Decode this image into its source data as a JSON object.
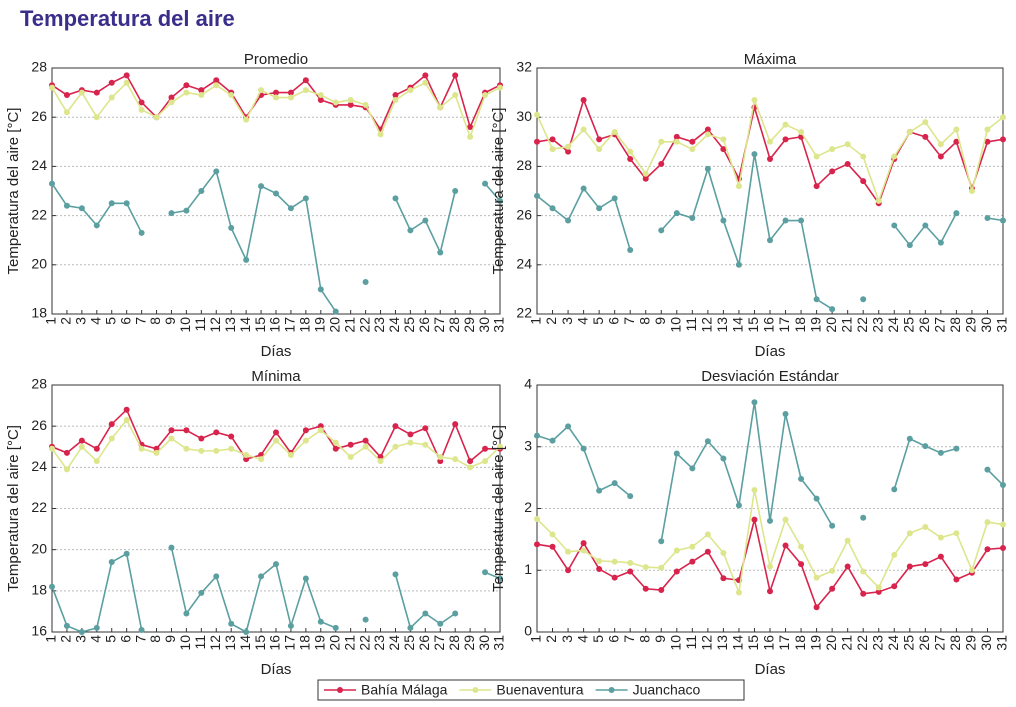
{
  "title": "Temperatura del aire",
  "chart_data": [
    {
      "type": "line",
      "title": "Promedio",
      "x_label": "Días",
      "y_label": "Temperatura del aire [°C]",
      "x": [
        1,
        2,
        3,
        4,
        5,
        6,
        7,
        8,
        9,
        10,
        11,
        12,
        13,
        14,
        15,
        16,
        17,
        18,
        19,
        20,
        21,
        22,
        23,
        24,
        25,
        26,
        27,
        28,
        29,
        30,
        31
      ],
      "xlim": [
        1,
        31
      ],
      "xticks": [
        1,
        2,
        3,
        4,
        5,
        6,
        7,
        8,
        9,
        10,
        11,
        12,
        13,
        14,
        15,
        16,
        17,
        18,
        19,
        20,
        21,
        22,
        23,
        24,
        25,
        26,
        27,
        28,
        29,
        30,
        31
      ],
      "ylim": [
        18,
        28
      ],
      "yticks": [
        18,
        20,
        22,
        24,
        26,
        28
      ],
      "grid": true,
      "series": [
        {
          "name": "Bahía Málaga",
          "color": "#d8234c",
          "values": [
            27.3,
            26.9,
            27.1,
            27.0,
            27.4,
            27.7,
            26.6,
            26.0,
            26.8,
            27.3,
            27.1,
            27.5,
            27.0,
            26.0,
            26.9,
            27.0,
            27.0,
            27.5,
            26.7,
            26.5,
            26.5,
            26.4,
            25.5,
            26.9,
            27.2,
            27.7,
            26.4,
            27.7,
            25.6,
            27.0,
            27.3
          ]
        },
        {
          "name": "Buenaventura",
          "color": "#dde68c",
          "values": [
            27.2,
            26.2,
            27.0,
            26.0,
            26.8,
            27.4,
            26.3,
            26.0,
            26.6,
            27.0,
            26.9,
            27.3,
            26.9,
            25.9,
            27.1,
            26.8,
            26.8,
            27.1,
            26.9,
            26.6,
            26.7,
            26.5,
            25.3,
            26.7,
            27.1,
            27.4,
            26.4,
            26.9,
            25.2,
            26.9,
            27.2
          ]
        },
        {
          "name": "Juanchaco",
          "color": "#5b9fa1",
          "values": [
            23.3,
            22.4,
            22.3,
            21.6,
            22.5,
            22.5,
            21.3,
            null,
            22.1,
            22.2,
            23.0,
            23.8,
            21.5,
            20.2,
            23.2,
            22.9,
            22.3,
            22.7,
            19.0,
            18.1,
            null,
            19.3,
            null,
            22.7,
            21.4,
            21.8,
            20.5,
            23.0,
            null,
            23.3,
            22.6
          ]
        }
      ]
    },
    {
      "type": "line",
      "title": "Máxima",
      "x_label": "Días",
      "y_label": "Temperatura del aire [°C]",
      "x": [
        1,
        2,
        3,
        4,
        5,
        6,
        7,
        8,
        9,
        10,
        11,
        12,
        13,
        14,
        15,
        16,
        17,
        18,
        19,
        20,
        21,
        22,
        23,
        24,
        25,
        26,
        27,
        28,
        29,
        30,
        31
      ],
      "xlim": [
        1,
        31
      ],
      "xticks": [
        1,
        2,
        3,
        4,
        5,
        6,
        7,
        8,
        9,
        10,
        11,
        12,
        13,
        14,
        15,
        16,
        17,
        18,
        19,
        20,
        21,
        22,
        23,
        24,
        25,
        26,
        27,
        28,
        29,
        30,
        31
      ],
      "ylim": [
        22,
        32
      ],
      "yticks": [
        22,
        24,
        26,
        28,
        30,
        32
      ],
      "grid": true,
      "series": [
        {
          "name": "Bahía Málaga",
          "color": "#d8234c",
          "values": [
            29.0,
            29.1,
            28.6,
            30.7,
            29.1,
            29.3,
            28.3,
            27.5,
            28.1,
            29.2,
            29.0,
            29.5,
            28.7,
            27.5,
            30.4,
            28.3,
            29.1,
            29.2,
            27.2,
            27.8,
            28.1,
            27.4,
            26.5,
            28.3,
            29.4,
            29.2,
            28.4,
            29.0,
            27.1,
            29.0,
            29.1
          ]
        },
        {
          "name": "Buenaventura",
          "color": "#dde68c",
          "values": [
            30.1,
            28.7,
            28.8,
            29.5,
            28.7,
            29.4,
            28.6,
            27.7,
            29.0,
            29.0,
            28.7,
            29.3,
            29.1,
            27.2,
            30.7,
            29.0,
            29.7,
            29.4,
            28.4,
            28.7,
            28.9,
            28.4,
            26.6,
            28.4,
            29.4,
            29.8,
            28.9,
            29.5,
            27.0,
            29.5,
            30.0
          ]
        },
        {
          "name": "Juanchaco",
          "color": "#5b9fa1",
          "values": [
            26.8,
            26.3,
            25.8,
            27.1,
            26.3,
            26.7,
            24.6,
            null,
            25.4,
            26.1,
            25.9,
            27.9,
            25.8,
            24.0,
            28.5,
            25.0,
            25.8,
            25.8,
            22.6,
            22.2,
            null,
            22.6,
            null,
            25.6,
            24.8,
            25.6,
            24.9,
            26.1,
            null,
            25.9,
            25.8
          ]
        }
      ]
    },
    {
      "type": "line",
      "title": "Mínima",
      "x_label": "Días",
      "y_label": "Temperatura del aire [°C]",
      "x": [
        1,
        2,
        3,
        4,
        5,
        6,
        7,
        8,
        9,
        10,
        11,
        12,
        13,
        14,
        15,
        16,
        17,
        18,
        19,
        20,
        21,
        22,
        23,
        24,
        25,
        26,
        27,
        28,
        29,
        30,
        31
      ],
      "xlim": [
        1,
        31
      ],
      "xticks": [
        1,
        2,
        3,
        4,
        5,
        6,
        7,
        8,
        9,
        10,
        11,
        12,
        13,
        14,
        15,
        16,
        17,
        18,
        19,
        20,
        21,
        22,
        23,
        24,
        25,
        26,
        27,
        28,
        29,
        30,
        31
      ],
      "ylim": [
        16,
        28
      ],
      "yticks": [
        16,
        18,
        20,
        22,
        24,
        26,
        28
      ],
      "grid": true,
      "series": [
        {
          "name": "Bahía Málaga",
          "color": "#d8234c",
          "values": [
            25.0,
            24.7,
            25.3,
            24.9,
            26.1,
            26.8,
            25.1,
            24.9,
            25.8,
            25.8,
            25.4,
            25.7,
            25.5,
            24.4,
            24.6,
            25.7,
            24.7,
            25.8,
            26.0,
            24.9,
            25.1,
            25.3,
            24.5,
            26.0,
            25.6,
            25.9,
            24.3,
            26.1,
            24.3,
            24.9,
            24.9
          ]
        },
        {
          "name": "Buenaventura",
          "color": "#dde68c",
          "values": [
            24.9,
            23.9,
            25.0,
            24.3,
            25.4,
            26.3,
            24.9,
            24.7,
            25.4,
            24.9,
            24.8,
            24.8,
            24.9,
            24.6,
            24.4,
            25.3,
            24.6,
            25.3,
            25.8,
            25.2,
            24.5,
            25.0,
            24.3,
            25.0,
            25.2,
            25.1,
            24.5,
            24.4,
            24.0,
            24.3,
            25.0
          ]
        },
        {
          "name": "Juanchaco",
          "color": "#5b9fa1",
          "values": [
            18.2,
            16.3,
            16.0,
            16.2,
            19.4,
            19.8,
            16.1,
            null,
            20.1,
            16.9,
            17.9,
            18.7,
            16.4,
            16.0,
            18.7,
            19.3,
            16.3,
            18.6,
            16.5,
            16.2,
            null,
            16.6,
            null,
            18.8,
            16.2,
            16.9,
            16.4,
            16.9,
            null,
            18.9,
            18.6
          ]
        }
      ]
    },
    {
      "type": "line",
      "title": "Desviación Estándar",
      "x_label": "Días",
      "y_label": "Temperatura del aire [°C]",
      "x": [
        1,
        2,
        3,
        4,
        5,
        6,
        7,
        8,
        9,
        10,
        11,
        12,
        13,
        14,
        15,
        16,
        17,
        18,
        19,
        20,
        21,
        22,
        23,
        24,
        25,
        26,
        27,
        28,
        29,
        30,
        31
      ],
      "xlim": [
        1,
        31
      ],
      "xticks": [
        1,
        2,
        3,
        4,
        5,
        6,
        7,
        8,
        9,
        10,
        11,
        12,
        13,
        14,
        15,
        16,
        17,
        18,
        19,
        20,
        21,
        22,
        23,
        24,
        25,
        26,
        27,
        28,
        29,
        30,
        31
      ],
      "ylim": [
        0,
        4
      ],
      "yticks": [
        0,
        1,
        2,
        3,
        4
      ],
      "grid": true,
      "series": [
        {
          "name": "Bahía Málaga",
          "color": "#d8234c",
          "values": [
            1.42,
            1.38,
            1.0,
            1.44,
            1.02,
            0.88,
            0.98,
            0.7,
            0.68,
            0.98,
            1.14,
            1.3,
            0.87,
            0.84,
            1.82,
            0.66,
            1.4,
            1.1,
            0.4,
            0.7,
            1.06,
            0.62,
            0.65,
            0.74,
            1.06,
            1.1,
            1.22,
            0.85,
            0.96,
            1.34,
            1.36
          ]
        },
        {
          "name": "Buenaventura",
          "color": "#dde68c",
          "values": [
            1.83,
            1.58,
            1.3,
            1.32,
            1.15,
            1.14,
            1.12,
            1.05,
            1.04,
            1.32,
            1.38,
            1.58,
            1.28,
            0.64,
            2.3,
            1.06,
            1.82,
            1.38,
            0.88,
            0.99,
            1.48,
            0.98,
            0.72,
            1.25,
            1.6,
            1.7,
            1.53,
            1.6,
            1.0,
            1.78,
            1.74
          ]
        },
        {
          "name": "Juanchaco",
          "color": "#5b9fa1",
          "values": [
            3.18,
            3.1,
            3.33,
            2.97,
            2.29,
            2.41,
            2.2,
            null,
            1.47,
            2.89,
            2.65,
            3.09,
            2.81,
            2.05,
            3.72,
            1.8,
            3.53,
            2.48,
            2.16,
            1.72,
            null,
            1.85,
            null,
            2.31,
            3.13,
            3.01,
            2.9,
            2.97,
            null,
            2.63,
            2.38
          ]
        }
      ]
    }
  ]
}
